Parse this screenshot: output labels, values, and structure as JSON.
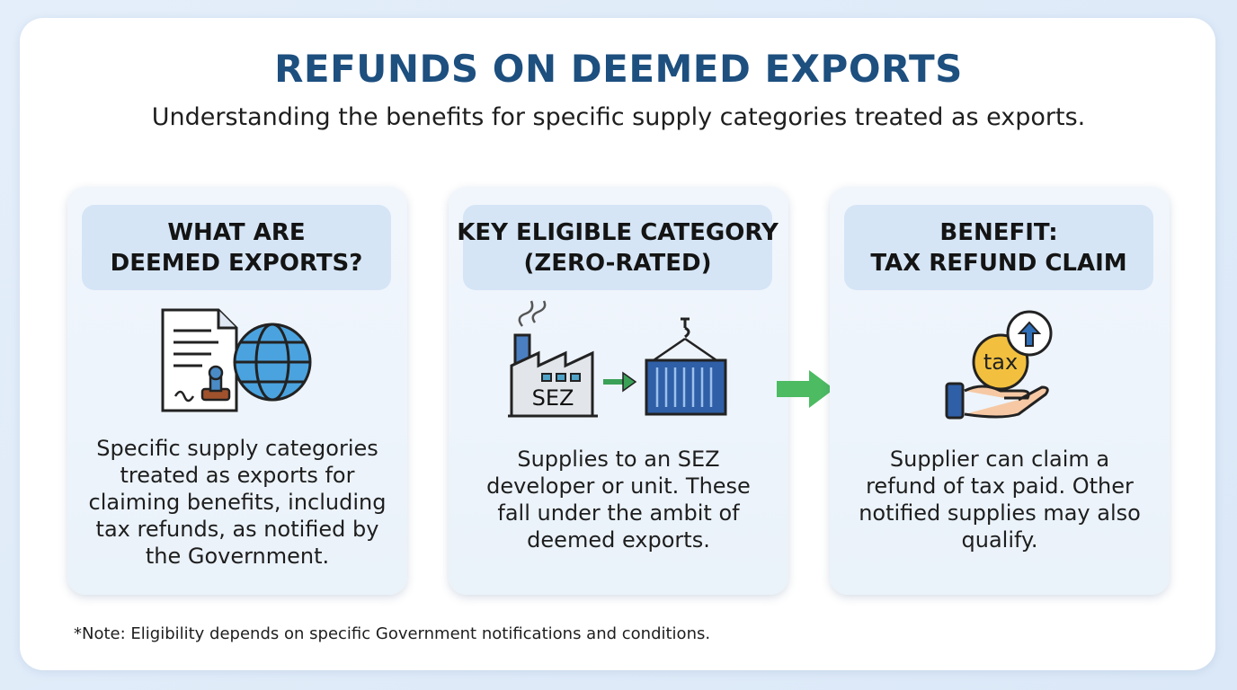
{
  "header": {
    "title": "REFUNDS ON DEEMED EXPORTS",
    "subtitle": "Understanding the benefits for specific supply categories treated as exports."
  },
  "cards": [
    {
      "heading": [
        "WHAT ARE",
        "DEEMED EXPORTS?"
      ],
      "body": [
        "Specific supply categories",
        "treated as exports for",
        "claiming benefits, including",
        "tax refunds, as notified by",
        "the Government."
      ]
    },
    {
      "heading": [
        "KEY ELIGIBLE CATEGORY",
        "(ZERO-RATED)"
      ],
      "icon_label": "SEZ",
      "body": [
        "Supplies to an SEZ",
        "developer or unit. These",
        "fall under the ambit of",
        "deemed exports."
      ]
    },
    {
      "heading": [
        "BENEFIT:",
        "TAX REFUND CLAIM"
      ],
      "icon_label": "tax",
      "body": [
        "Supplier can claim a",
        "refund of tax paid. Other",
        "notified supplies may also",
        "qualify."
      ]
    }
  ],
  "footnote": "*Note: Eligibility depends on specific Government notifications and conditions."
}
